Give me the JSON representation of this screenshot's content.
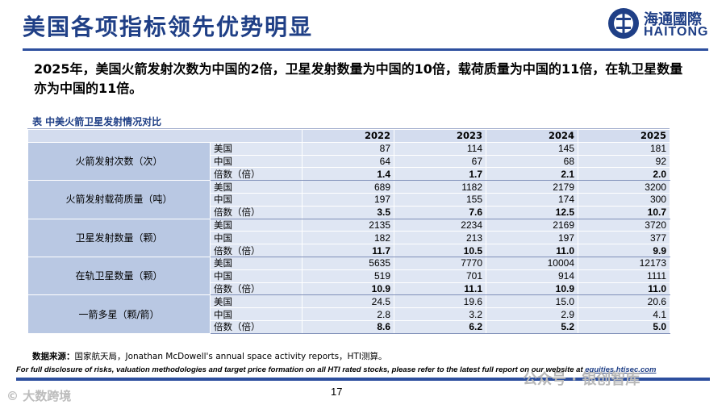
{
  "header": {
    "title": "美国各项指标领先优势明显"
  },
  "logo": {
    "cn": "海通國際",
    "en": "HAITONG"
  },
  "summary": "2025年，美国火箭发射次数为中国的2倍，卫星发射数量为中国的10倍，载荷质量为中国的11倍，在轨卫星数量亦为中国的11倍。",
  "table": {
    "caption": "表  中美火箭卫星发射情况对比",
    "years": [
      "2022",
      "2023",
      "2024",
      "2025"
    ],
    "groups": [
      {
        "label": "火箭发射次数（次）",
        "rows": [
          {
            "label": "美国",
            "values": [
              "87",
              "114",
              "145",
              "181"
            ]
          },
          {
            "label": "中国",
            "values": [
              "64",
              "67",
              "68",
              "92"
            ]
          },
          {
            "label": "倍数（倍）",
            "values": [
              "1.4",
              "1.7",
              "2.1",
              "2.0"
            ]
          }
        ]
      },
      {
        "label": "火箭发射载荷质量（吨）",
        "rows": [
          {
            "label": "美国",
            "values": [
              "689",
              "1182",
              "2179",
              "3200"
            ]
          },
          {
            "label": "中国",
            "values": [
              "197",
              "155",
              "174",
              "300"
            ]
          },
          {
            "label": "倍数（倍）",
            "values": [
              "3.5",
              "7.6",
              "12.5",
              "10.7"
            ]
          }
        ]
      },
      {
        "label": "卫星发射数量（颗）",
        "rows": [
          {
            "label": "美国",
            "values": [
              "2135",
              "2234",
              "2169",
              "3720"
            ]
          },
          {
            "label": "中国",
            "values": [
              "182",
              "213",
              "197",
              "377"
            ]
          },
          {
            "label": "倍数（倍）",
            "values": [
              "11.7",
              "10.5",
              "11.0",
              "9.9"
            ]
          }
        ]
      },
      {
        "label": "在轨卫星数量（颗）",
        "rows": [
          {
            "label": "美国",
            "values": [
              "5635",
              "7770",
              "10004",
              "12173"
            ]
          },
          {
            "label": "中国",
            "values": [
              "519",
              "701",
              "914",
              "1111"
            ]
          },
          {
            "label": "倍数（倍）",
            "values": [
              "10.9",
              "11.1",
              "10.9",
              "11.0"
            ]
          }
        ]
      },
      {
        "label": "一箭多星（颗/箭）",
        "rows": [
          {
            "label": "美国",
            "values": [
              "24.5",
              "19.6",
              "15.0",
              "20.6"
            ]
          },
          {
            "label": "中国",
            "values": [
              "2.8",
              "3.2",
              "2.9",
              "4.1"
            ]
          },
          {
            "label": "倍数（倍）",
            "values": [
              "8.6",
              "6.2",
              "5.2",
              "5.0"
            ]
          }
        ]
      }
    ]
  },
  "source": {
    "label": "数据来源：",
    "text": "国家航天局，Jonathan McDowell's annual space activity reports，HTI测算。"
  },
  "disclaimer": {
    "text": "For full disclosure of risks, valuation methodologies and target price formation on all HTI rated stocks, please refer to the latest full report on our website at ",
    "link": "equities.htisec.com"
  },
  "page_number": "17",
  "watermarks": {
    "left": "© 大数跨境",
    "right": "公众号 · 银创智库"
  },
  "colors": {
    "brand_blue": "#1f3f86",
    "header_fill": "#d3dcee",
    "category_fill": "#b9c8e3",
    "cell_fill": "#dfe6f3"
  }
}
